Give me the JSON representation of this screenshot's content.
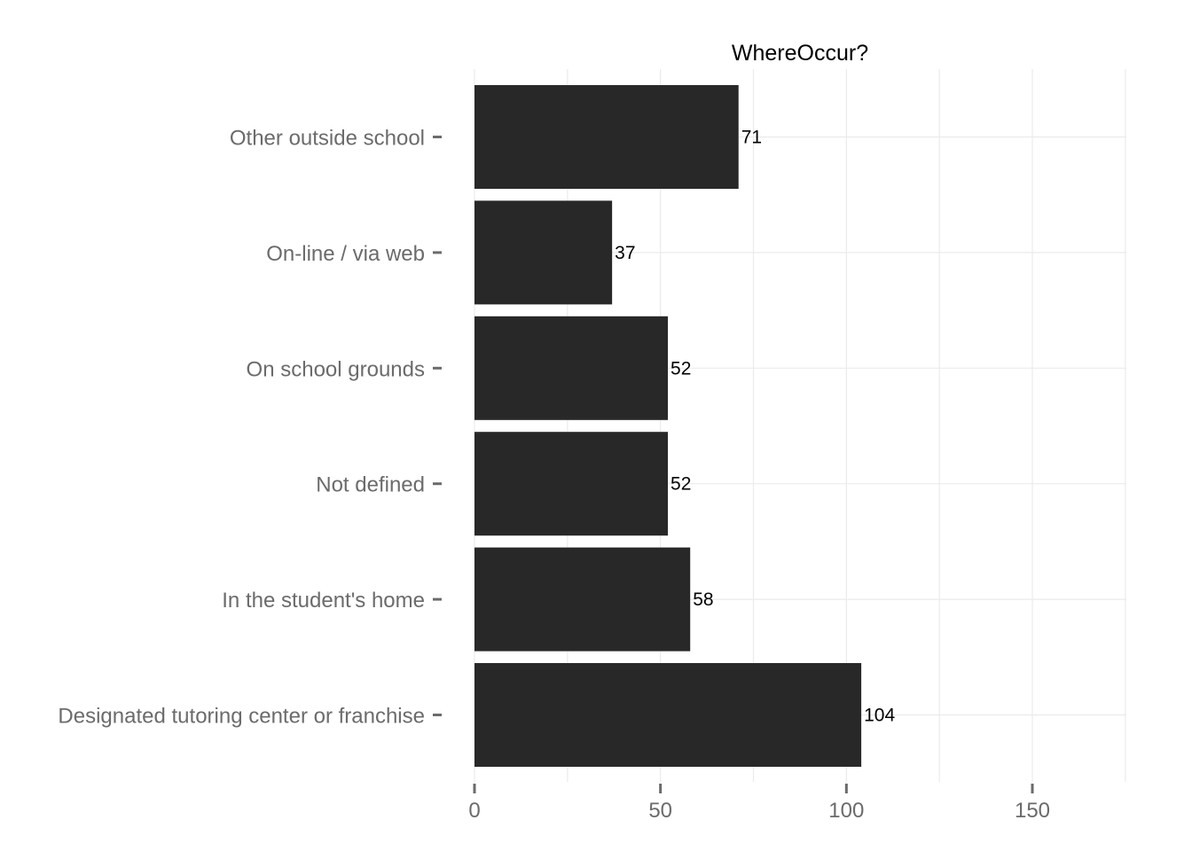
{
  "chart_data": {
    "type": "bar",
    "orientation": "horizontal",
    "title": "WhereOccur?",
    "xlabel": "",
    "ylabel": "",
    "categories": [
      "Other outside school",
      "On-line / via web",
      "On school grounds",
      "Not defined",
      "In the student's home",
      "Designated tutoring center or franchise"
    ],
    "values": [
      71,
      37,
      52,
      52,
      58,
      104
    ],
    "data_labels": [
      "71",
      "37",
      "52",
      "52",
      "58",
      "104"
    ],
    "xlim": [
      0,
      175
    ],
    "x_ticks": [
      0,
      50,
      100,
      150
    ],
    "x_tick_labels": [
      "0",
      "50",
      "100",
      "150"
    ],
    "grid": true,
    "legend": "none",
    "colors": {
      "bar": "#282828",
      "grid": "#ebebeb",
      "axis_text": "#6b6b6b",
      "title": "#000000",
      "data_label": "#000000"
    }
  }
}
